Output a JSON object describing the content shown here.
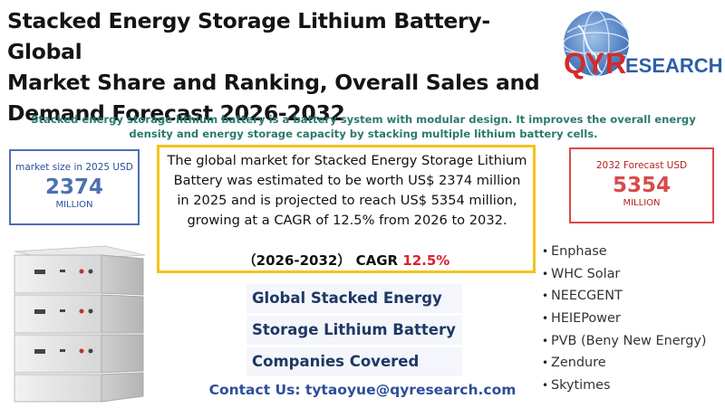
{
  "title": {
    "line1": "Stacked Energy Storage Lithium Battery- Global",
    "line2": "Market Share and Ranking, Overall Sales and",
    "line3": "Demand Forecast 2026-2032"
  },
  "logo": {
    "brand_q": "Q",
    "brand_y": "Y",
    "brand_r": "R",
    "brand_rest": "ESEARCH"
  },
  "description": "Stacked energy storage lithium battery is a battery system with modular design. It improves the overall energy density and energy storage capacity by stacking multiple lithium battery cells.",
  "market_left": {
    "label": "market size in 2025 USD",
    "value": "2374",
    "unit": "MILLION"
  },
  "market_right": {
    "label": "2032 Forecast  USD",
    "value": "5354",
    "unit": "MILLION"
  },
  "summary": {
    "text": "The global market for Stacked Energy Storage Lithium Battery was estimated to be worth US$ 2374 million in 2025 and is projected to reach US$ 5354 million, growing at a CAGR of 12.5% from 2026 to 2032.",
    "cagr_prefix": "（2026-2032）  CAGR ",
    "cagr_value": "12.5%"
  },
  "companies": {
    "heading": [
      "Global Stacked Energy",
      "Storage Lithium Battery",
      "Companies Covered"
    ],
    "list": [
      "Enphase",
      "WHC Solar",
      "NEECGENT",
      "HEIEPower",
      "PVB (Beny New Energy)",
      "Zendure",
      "Skytimes"
    ]
  },
  "contact": "Contact Us: tytaoyue@qyresearch.com",
  "colors": {
    "accent_blue": "#4d70b4",
    "accent_red": "#d94a4a",
    "highlight_yellow": "#f5c21b",
    "teal_text": "#2a7a6c"
  }
}
